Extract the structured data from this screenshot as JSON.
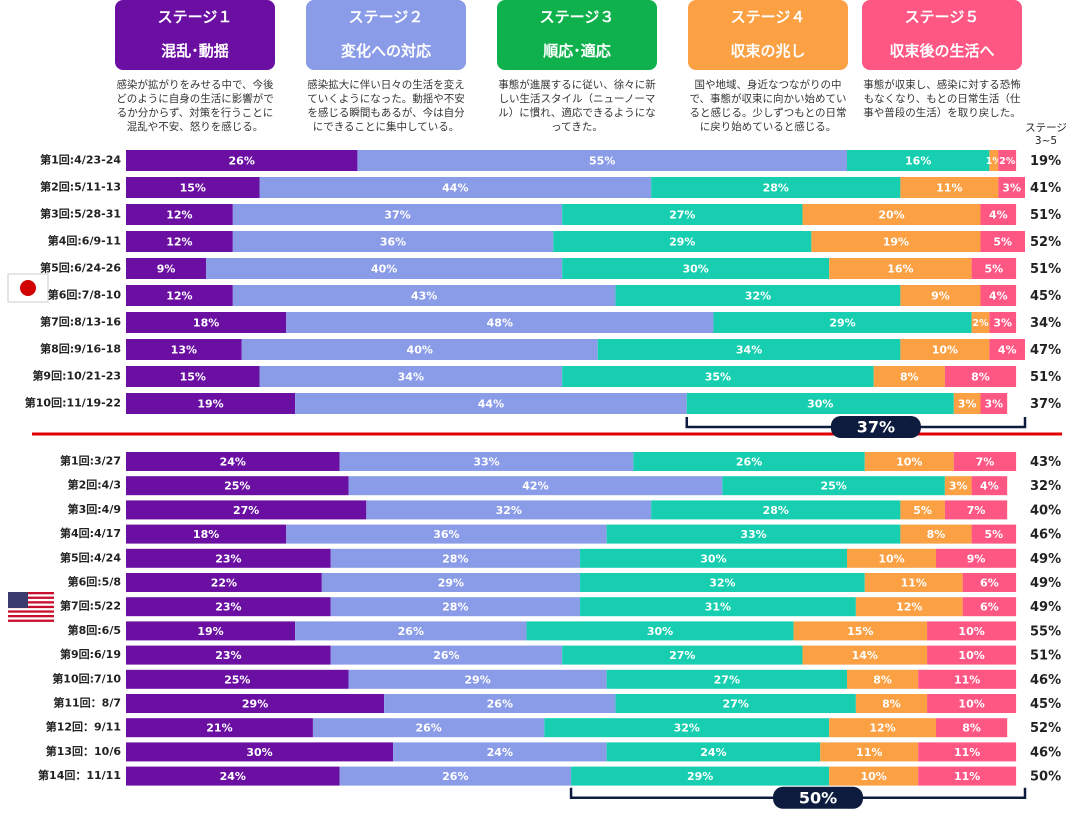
{
  "chart_data": {
    "type": "stacked-bar-h",
    "xlim": [
      0,
      101
    ],
    "series": [
      {
        "name": "ステージ１",
        "subtitle": "混乱･動揺",
        "description": "感染が拡がりをみせる中で、今後どのように自身の生活に影響がでるか分からず、対策を行うことに混乱や不安、怒りを感じる。",
        "color": "#6b0fa3",
        "box_color": "#6b0fa3"
      },
      {
        "name": "ステージ２",
        "subtitle": "変化への対応",
        "description": "感染拡大に伴い日々の生活を変えていくようになった。動揺や不安を感じる瞬間もあるが、今は自分にできることに集中している。",
        "color": "#8a9be8",
        "box_color": "#8a9be8"
      },
      {
        "name": "ステージ３",
        "subtitle": "順応･適応",
        "description": "事態が進展するに従い、徐々に新しい生活スタイル（ニューノーマル）に慣れ、適応できるようになってきた。",
        "color": "#17cfb0",
        "box_color": "#0fb14d"
      },
      {
        "name": "ステージ４",
        "subtitle": "収束の兆し",
        "description": "国や地域、身近なつながりの中で、事態が収束に向かい始めていると感じる。少しずつもとの日常に戻り始めていると感じる。",
        "color": "#fba043",
        "box_color": "#fba043"
      },
      {
        "name": "ステージ５",
        "subtitle": "収束後の生活へ",
        "description": "事態が収束し、感染に対する恐怖もなくなり、もとの日常生活（仕事や普段の生活）を取り戻した。",
        "color": "#ff5784",
        "box_color": "#ff5784"
      }
    ],
    "totals_header": "ステージ\n3~5",
    "groups": [
      {
        "categories": [
          "第1回:4/23-24",
          "第2回:5/11-13",
          "第3回:5/28-31",
          "第4回:6/9-11",
          "第5回:6/24-26",
          "第6回:7/8-10",
          "第7回:8/13-16",
          "第8回:9/16-18",
          "第9回:10/21-23",
          "第10回:11/19-22"
        ],
        "values": [
          [
            26,
            55,
            16,
            1,
            2
          ],
          [
            15,
            44,
            28,
            11,
            3
          ],
          [
            12,
            37,
            27,
            20,
            4
          ],
          [
            12,
            36,
            29,
            19,
            5
          ],
          [
            9,
            40,
            30,
            16,
            5
          ],
          [
            12,
            43,
            32,
            9,
            4
          ],
          [
            18,
            48,
            29,
            2,
            3
          ],
          [
            13,
            40,
            34,
            10,
            4
          ],
          [
            15,
            34,
            35,
            8,
            8
          ],
          [
            19,
            44,
            30,
            3,
            3
          ]
        ],
        "value_labels": [
          [
            "26%",
            "55%",
            "16%",
            "1%",
            "2%"
          ],
          [
            "15%",
            "44%",
            "28%",
            "11%",
            "3%"
          ],
          [
            "12%",
            "37%",
            "27%",
            "20%",
            "4%"
          ],
          [
            "12%",
            "36%",
            "29%",
            "19%",
            "5%"
          ],
          [
            "9%",
            "40%",
            "30%",
            "16%",
            "5%"
          ],
          [
            "12%",
            "43%",
            "32%",
            "9%",
            "4%"
          ],
          [
            "18%",
            "48%",
            "29%",
            "2%",
            "3%"
          ],
          [
            "13%",
            "40%",
            "34%",
            "10%",
            "4%"
          ],
          [
            "15%",
            "34%",
            "35%",
            "8%",
            "8%"
          ],
          [
            "19%",
            "44%",
            "30%",
            "3%",
            "3%"
          ]
        ],
        "totals": [
          19,
          41,
          51,
          52,
          51,
          45,
          34,
          47,
          51,
          37
        ],
        "total_labels": [
          "19%",
          "41%",
          "51%",
          "52%",
          "51%",
          "45%",
          "34%",
          "47%",
          "51%",
          "37%"
        ],
        "bracket_label": "37%"
      },
      {
        "categories": [
          "第1回:3/27",
          "第2回:4/3",
          "第3回:4/9",
          "第4回:4/17",
          "第5回:4/24",
          "第6回:5/8",
          "第7回:5/22",
          "第8回:6/5",
          "第9回:6/19",
          "第10回:7/10",
          "第11回：8/7",
          "第12回：9/11",
          "第13回：10/6",
          "第14回：11/11"
        ],
        "values": [
          [
            24,
            33,
            26,
            10,
            7
          ],
          [
            25,
            42,
            25,
            3,
            4
          ],
          [
            27,
            32,
            28,
            5,
            7
          ],
          [
            18,
            36,
            33,
            8,
            5
          ],
          [
            23,
            28,
            30,
            10,
            9
          ],
          [
            22,
            29,
            32,
            11,
            6
          ],
          [
            23,
            28,
            31,
            12,
            6
          ],
          [
            19,
            26,
            30,
            15,
            10
          ],
          [
            23,
            26,
            27,
            14,
            10
          ],
          [
            25,
            29,
            27,
            8,
            11
          ],
          [
            29,
            26,
            27,
            8,
            10
          ],
          [
            21,
            26,
            32,
            12,
            8
          ],
          [
            30,
            24,
            24,
            11,
            11
          ],
          [
            24,
            26,
            29,
            10,
            11
          ]
        ],
        "value_labels": [
          [
            "24%",
            "33%",
            "26%",
            "10%",
            "7%"
          ],
          [
            "25%",
            "42%",
            "25%",
            "3%",
            "4%"
          ],
          [
            "27%",
            "32%",
            "28%",
            "5%",
            "7%"
          ],
          [
            "18%",
            "36%",
            "33%",
            "8%",
            "5%"
          ],
          [
            "23%",
            "28%",
            "30%",
            "10%",
            "9%"
          ],
          [
            "22%",
            "29%",
            "32%",
            "11%",
            "6%"
          ],
          [
            "23%",
            "28%",
            "31%",
            "12%",
            "6%"
          ],
          [
            "19%",
            "26%",
            "30%",
            "15%",
            "10%"
          ],
          [
            "23%",
            "26%",
            "27%",
            "14%",
            "10%"
          ],
          [
            "25%",
            "29%",
            "27%",
            "8%",
            "11%"
          ],
          [
            "29%",
            "26%",
            "27%",
            "8%",
            "10%"
          ],
          [
            "21%",
            "26%",
            "32%",
            "12%",
            "8%"
          ],
          [
            "30%",
            "24%",
            "24%",
            "11%",
            "11%"
          ],
          [
            "24%",
            "26%",
            "29%",
            "10%",
            "11%"
          ]
        ],
        "totals": [
          43,
          32,
          40,
          46,
          49,
          49,
          49,
          55,
          51,
          46,
          45,
          52,
          46,
          50
        ],
        "total_labels": [
          "43%",
          "32%",
          "40%",
          "46%",
          "49%",
          "49%",
          "49%",
          "55%",
          "51%",
          "46%",
          "45%",
          "52%",
          "46%",
          "50%"
        ],
        "bracket_label": "50%"
      }
    ]
  }
}
